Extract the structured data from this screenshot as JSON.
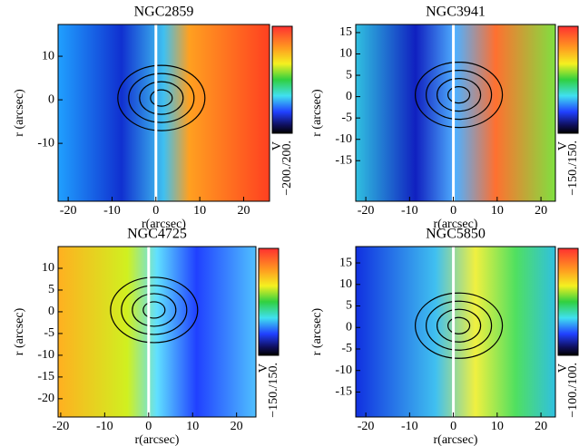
{
  "chart_data": [
    {
      "type": "map",
      "title": "NGC2859",
      "xlabel": "r(arcsec)",
      "ylabel": "r (arcsec)",
      "xlim": [
        -22.3,
        25.9
      ],
      "ylim": [
        -23.3,
        17.3
      ],
      "xticks": [
        -20,
        -10,
        0,
        10,
        20
      ],
      "yticks": [
        -10,
        0,
        10
      ],
      "colorbar_label": "V",
      "clim": [
        -200,
        200
      ],
      "clim_label": "−200./200."
    },
    {
      "type": "map",
      "title": "NGC3941",
      "xlabel": "r(arcsec)",
      "ylabel": "r (arcsec)",
      "xlim": [
        -22.3,
        23.3
      ],
      "ylim": [
        -24.5,
        16.9
      ],
      "xticks": [
        -20,
        -10,
        0,
        10,
        20
      ],
      "yticks": [
        -15,
        -10,
        -5,
        0,
        5,
        10,
        15
      ],
      "colorbar_label": "V",
      "clim": [
        -150,
        150
      ],
      "clim_label": "−150./150."
    },
    {
      "type": "map",
      "title": "NGC4725",
      "xlabel": "r(arcsec)",
      "ylabel": "r (arcsec)",
      "xlim": [
        -20.6,
        24.4
      ],
      "ylim": [
        -24.2,
        15
      ],
      "xticks": [
        -20,
        -10,
        0,
        10,
        20
      ],
      "yticks": [
        -20,
        -15,
        -10,
        -5,
        0,
        5,
        10
      ],
      "colorbar_label": "V",
      "clim": [
        -150,
        150
      ],
      "clim_label": "−150./150."
    },
    {
      "type": "map",
      "title": "NGC5850",
      "xlabel": "r(arcsec)",
      "ylabel": "r (arcsec)",
      "xlim": [
        -22.3,
        23.3
      ],
      "ylim": [
        -20.8,
        18.8
      ],
      "xticks": [
        -20,
        -10,
        0,
        10,
        20
      ],
      "yticks": [
        -15,
        -10,
        -5,
        0,
        5,
        10,
        15
      ],
      "colorbar_label": "V",
      "clim": [
        -100,
        100
      ],
      "clim_label": "−100./100."
    }
  ]
}
